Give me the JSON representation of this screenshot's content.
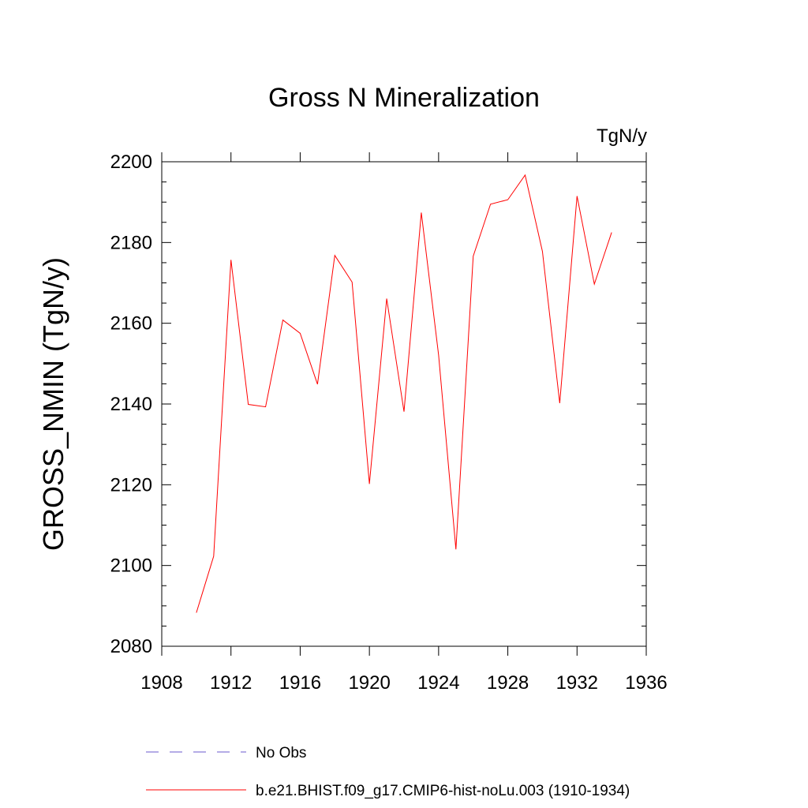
{
  "chart_data": {
    "type": "line",
    "title": "Gross N Mineralization",
    "units": "TgN/y",
    "ylabel": "GROSS_NMIN  (TgN/y)",
    "xlabel": "",
    "xlim": [
      1908,
      1936
    ],
    "ylim": [
      2080,
      2200
    ],
    "x_ticks": [
      "1908",
      "1912",
      "1916",
      "1920",
      "1924",
      "1928",
      "1932",
      "1936"
    ],
    "y_ticks": [
      "2080",
      "2100",
      "2120",
      "2140",
      "2160",
      "2180",
      "2200"
    ],
    "grid": false,
    "legend_position": "bottom",
    "series": [
      {
        "name": "No Obs",
        "color": "#6a5acd",
        "style": "dashed",
        "x": [],
        "values": []
      },
      {
        "name": "b.e21.BHIST.f09_g17.CMIP6-hist-noLu.003 (1910-1934)",
        "color": "#ff0000",
        "style": "solid",
        "x": [
          1910,
          1911,
          1912,
          1913,
          1914,
          1915,
          1916,
          1917,
          1918,
          1919,
          1920,
          1921,
          1922,
          1923,
          1924,
          1925,
          1926,
          1927,
          1928,
          1929,
          1930,
          1931,
          1932,
          1933,
          1934
        ],
        "values": [
          2088.3,
          2102.3,
          2175.7,
          2139.9,
          2139.3,
          2160.8,
          2157.5,
          2144.9,
          2176.8,
          2170.2,
          2120.2,
          2166.1,
          2138.1,
          2187.4,
          2152.1,
          2104.0,
          2176.6,
          2189.5,
          2190.6,
          2196.7,
          2177.8,
          2140.2,
          2191.5,
          2169.7,
          2182.5
        ]
      }
    ]
  }
}
